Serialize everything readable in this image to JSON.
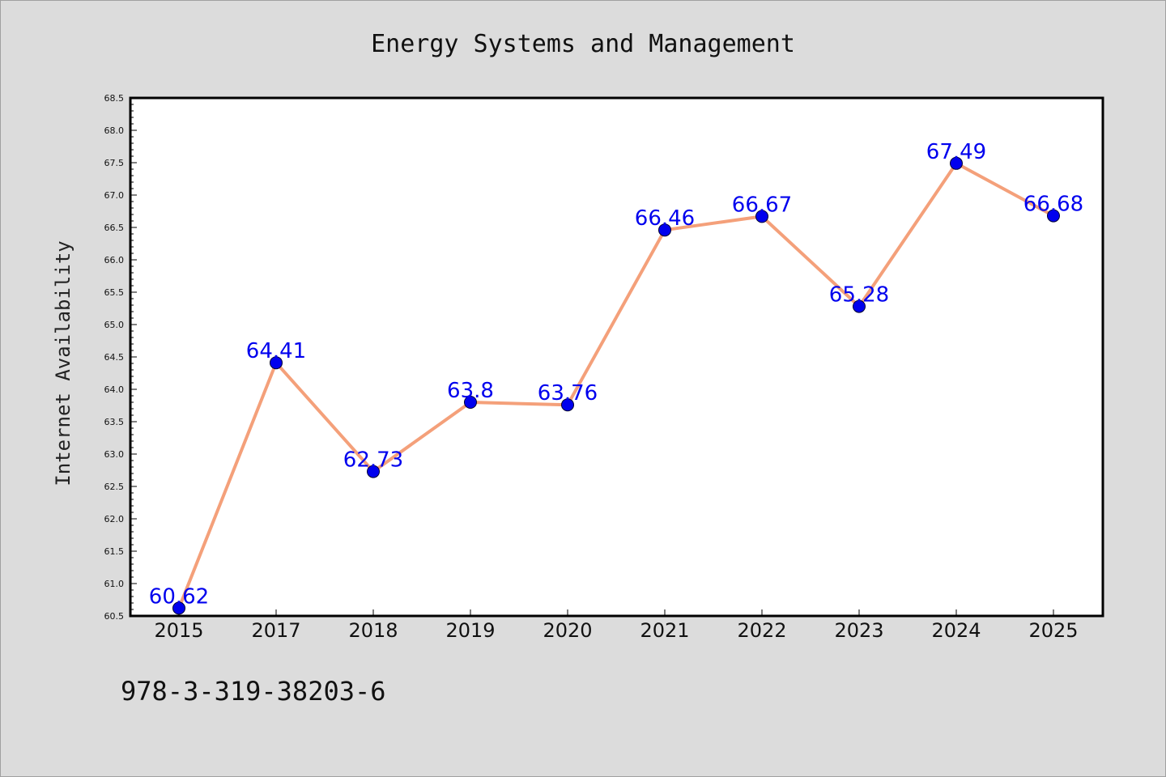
{
  "chart_data": {
    "type": "line",
    "title": "Energy Systems and Management",
    "xlabel": "",
    "ylabel": "Internet Availability",
    "categories": [
      "2015",
      "2017",
      "2018",
      "2019",
      "2020",
      "2021",
      "2022",
      "2023",
      "2024",
      "2025"
    ],
    "series": [
      {
        "values": [
          60.62,
          64.41,
          62.73,
          63.8,
          63.76,
          66.46,
          66.67,
          65.28,
          67.49,
          66.68
        ]
      }
    ],
    "data_labels": [
      "60.62",
      "64.41",
      "62.73",
      "63.8",
      "63.76",
      "66.46",
      "66.67",
      "65.28",
      "67.49",
      "66.68"
    ],
    "ylim": [
      60.5,
      68.5
    ],
    "yticks": [
      "60.5",
      "61.0",
      "61.5",
      "62.0",
      "62.5",
      "63.0",
      "63.5",
      "64.0",
      "64.5",
      "65.0",
      "65.5",
      "66.0",
      "66.5",
      "67.0",
      "67.5",
      "68.0",
      "68.5"
    ],
    "grid": false,
    "legend": "none",
    "colors": {
      "line": "#f4a07a",
      "marker": "#0000ee",
      "data_label": "#0000ee",
      "background": "#dcdcdc",
      "plot_background": "#ffffff"
    }
  },
  "footer": {
    "isbn": "978-3-319-38203-6"
  }
}
